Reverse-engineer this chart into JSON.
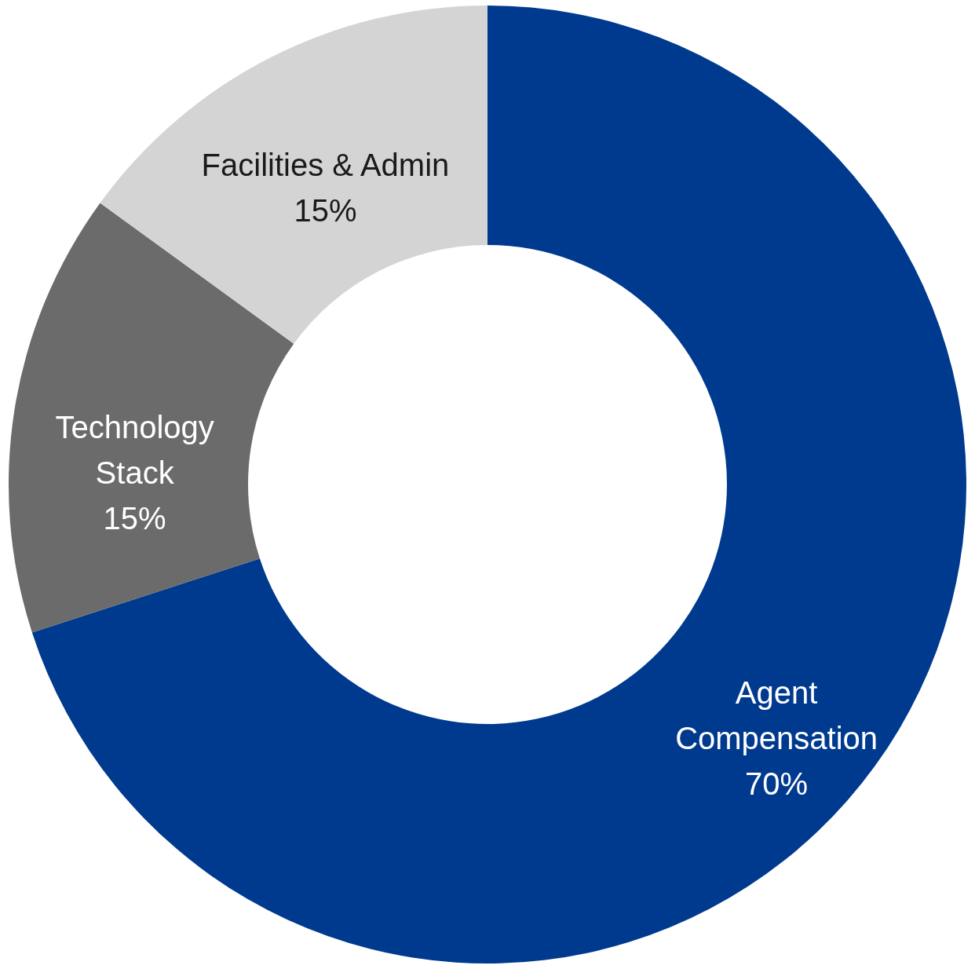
{
  "chart_data": {
    "type": "donut",
    "categories": [
      "Agent\nCompensation",
      "Technology\nStack",
      "Facilities & Admin"
    ],
    "values": [
      70,
      15,
      15
    ],
    "value_labels": [
      "70%",
      "15%",
      "15%"
    ],
    "colors": [
      "#003a8f",
      "#6b6b6b",
      "#d4d4d4"
    ]
  }
}
